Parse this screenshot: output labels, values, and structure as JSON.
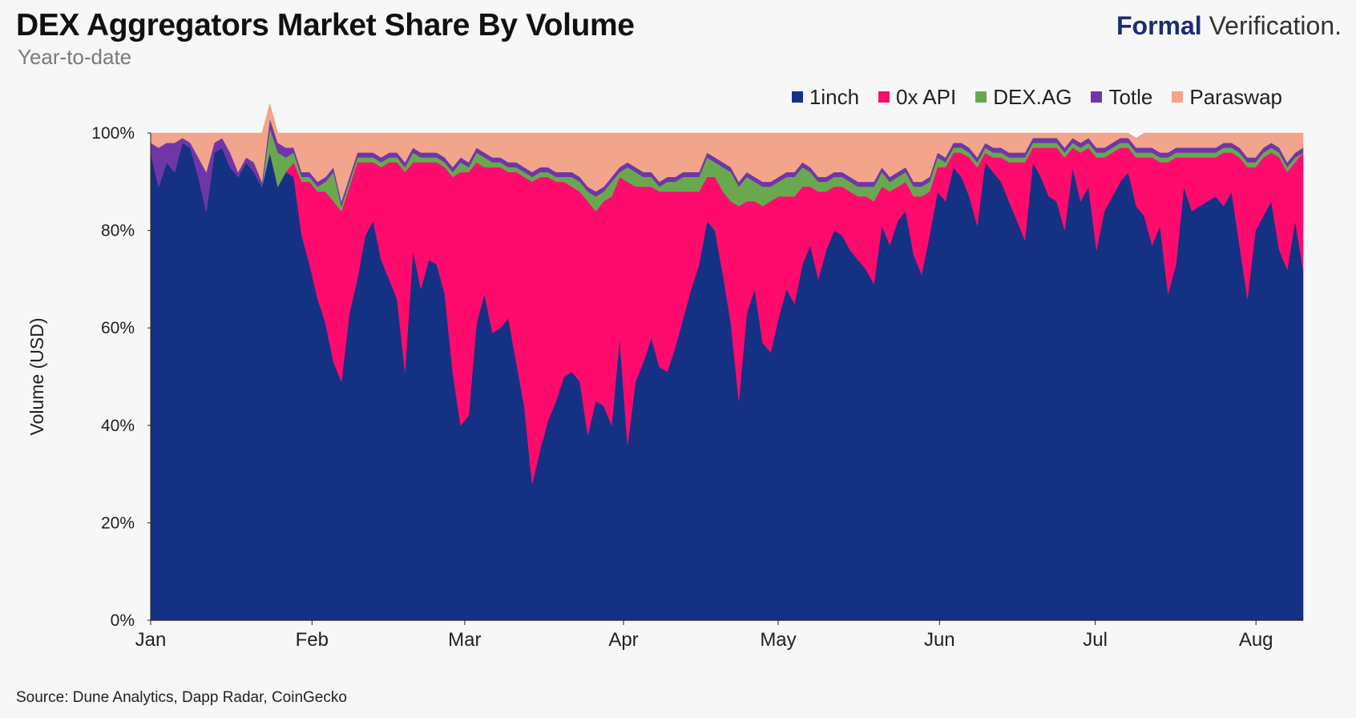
{
  "header": {
    "title": "DEX Aggregators Market Share By Volume",
    "subtitle": "Year-to-date"
  },
  "brand": {
    "strong": "Formal",
    "light": " Verification."
  },
  "source": "Source: Dune Analytics, Dapp Radar, CoinGecko",
  "colors": {
    "1inch": "#143184",
    "0x API": "#ff0b6d",
    "DEX.AG": "#6aa84f",
    "Totle": "#6f36a8",
    "Paraswap": "#f2a58a",
    "background": "#f7f7f7"
  },
  "chart_data": {
    "type": "area",
    "stacked": true,
    "normalized": true,
    "title": "DEX Aggregators Market Share By Volume",
    "subtitle": "Year-to-date",
    "xlabel": "",
    "ylabel": "Volume (USD)",
    "ylim": [
      0,
      100
    ],
    "grid": false,
    "legend_position": "top-right",
    "x_ticks": [
      "Jan",
      "Feb",
      "Mar",
      "Apr",
      "May",
      "Jun",
      "Jul",
      "Aug"
    ],
    "y_ticks": [
      "0%",
      "20%",
      "40%",
      "60%",
      "80%",
      "100%"
    ],
    "series": [
      {
        "name": "1inch",
        "color": "#143184",
        "values": [
          96,
          89,
          94,
          92,
          98,
          97,
          91,
          84,
          96,
          97,
          93,
          91,
          94,
          92,
          89,
          96,
          89,
          92,
          91,
          79,
          73,
          66,
          61,
          53,
          49,
          63,
          70,
          79,
          82,
          74,
          70,
          66,
          51,
          76,
          68,
          74,
          73,
          67,
          51,
          40,
          42,
          61,
          67,
          59,
          60,
          62,
          53,
          44,
          28,
          35,
          41,
          45,
          50,
          51,
          49,
          38,
          45,
          44,
          40,
          58,
          36,
          49,
          53,
          58,
          52,
          51,
          56,
          62,
          68,
          73,
          82,
          80,
          71,
          61,
          45,
          63,
          68,
          57,
          55,
          62,
          68,
          65,
          73,
          77,
          70,
          76,
          80,
          79,
          76,
          74,
          72,
          69,
          81,
          77,
          82,
          84,
          75,
          71,
          79,
          88,
          86,
          93,
          91,
          87,
          81,
          94,
          92,
          90,
          86,
          82,
          78,
          94,
          91,
          87,
          86,
          80,
          93,
          86,
          89,
          76,
          84,
          87,
          90,
          92,
          85,
          83,
          77,
          81,
          67,
          73,
          89,
          84,
          85,
          86,
          87,
          85,
          88,
          77,
          66,
          80,
          83,
          86,
          76,
          72,
          82,
          72
        ]
      },
      {
        "name": "0x API",
        "color": "#ff0b6d",
        "values": [
          0,
          0,
          0,
          0,
          0,
          0,
          0,
          0,
          0,
          0,
          0,
          0,
          0,
          0,
          0,
          0,
          0,
          0,
          3,
          11,
          17,
          22,
          27,
          33,
          35,
          26,
          24,
          15,
          12,
          19,
          24,
          28,
          41,
          18,
          26,
          20,
          21,
          26,
          40,
          52,
          50,
          33,
          26,
          34,
          33,
          30,
          39,
          47,
          62,
          56,
          50,
          45,
          40,
          38,
          39,
          48,
          39,
          42,
          47,
          33,
          54,
          40,
          36,
          31,
          36,
          37,
          32,
          26,
          20,
          15,
          9,
          11,
          17,
          25,
          40,
          23,
          18,
          28,
          31,
          25,
          19,
          22,
          16,
          12,
          18,
          12,
          9,
          10,
          12,
          13,
          15,
          17,
          8,
          11,
          7,
          6,
          12,
          16,
          9,
          5,
          7,
          3,
          5,
          8,
          12,
          2,
          3,
          5,
          8,
          12,
          16,
          3,
          6,
          10,
          11,
          15,
          4,
          10,
          8,
          19,
          11,
          9,
          7,
          5,
          10,
          12,
          18,
          13,
          27,
          22,
          6,
          11,
          10,
          9,
          8,
          11,
          8,
          18,
          27,
          13,
          12,
          10,
          19,
          20,
          12,
          24
        ]
      },
      {
        "name": "DEX.AG",
        "color": "#6aa84f",
        "values": [
          0,
          0,
          0,
          0,
          0,
          0,
          0,
          0,
          0,
          0,
          0,
          0,
          0,
          0,
          0,
          5,
          7,
          3,
          2,
          1,
          1,
          1,
          2,
          6,
          1,
          1,
          1,
          1,
          1,
          1,
          1,
          1,
          1,
          2,
          1,
          1,
          1,
          1,
          1,
          2,
          1,
          2,
          2,
          1,
          1,
          1,
          1,
          1,
          1,
          1,
          1,
          1,
          1,
          2,
          2,
          2,
          3,
          2,
          3,
          1,
          3,
          3,
          2,
          2,
          1,
          2,
          2,
          3,
          3,
          3,
          4,
          3,
          5,
          6,
          4,
          5,
          4,
          4,
          3,
          3,
          4,
          4,
          4,
          3,
          2,
          2,
          2,
          2,
          2,
          2,
          2,
          3,
          3,
          2,
          2,
          2,
          2,
          2,
          2,
          2,
          1,
          1,
          1,
          1,
          1,
          1,
          1,
          1,
          1,
          1,
          1,
          1,
          1,
          1,
          1,
          1,
          1,
          1,
          1,
          1,
          1,
          1,
          1,
          1,
          1,
          1,
          1,
          1,
          1,
          1,
          1,
          1,
          1,
          1,
          1,
          1,
          1,
          1,
          1,
          1,
          1,
          1,
          1,
          1,
          1,
          0
        ]
      },
      {
        "name": "Totle",
        "color": "#6f36a8",
        "values": [
          2,
          8,
          4,
          6,
          1,
          1,
          4,
          8,
          2,
          2,
          3,
          1,
          1,
          2,
          1,
          2,
          2,
          2,
          1,
          1,
          1,
          1,
          1,
          1,
          1,
          1,
          1,
          1,
          1,
          1,
          1,
          1,
          1,
          1,
          1,
          1,
          1,
          1,
          1,
          1,
          1,
          1,
          1,
          1,
          1,
          1,
          1,
          1,
          1,
          1,
          1,
          1,
          1,
          1,
          1,
          1,
          1,
          1,
          1,
          1,
          1,
          1,
          1,
          1,
          1,
          1,
          1,
          1,
          1,
          1,
          1,
          1,
          1,
          1,
          1,
          1,
          1,
          1,
          1,
          1,
          1,
          1,
          1,
          1,
          1,
          1,
          1,
          1,
          1,
          1,
          1,
          1,
          1,
          1,
          1,
          1,
          1,
          1,
          1,
          1,
          1,
          1,
          1,
          1,
          1,
          1,
          1,
          1,
          1,
          1,
          1,
          1,
          1,
          1,
          1,
          1,
          1,
          1,
          1,
          1,
          1,
          1,
          1,
          1,
          1,
          1,
          1,
          1,
          1,
          1,
          1,
          1,
          1,
          1,
          1,
          1,
          1,
          1,
          1,
          1,
          1,
          1,
          1,
          1,
          1,
          1
        ]
      },
      {
        "name": "Paraswap",
        "color": "#f2a58a",
        "values": [
          2,
          3,
          2,
          2,
          1,
          2,
          5,
          8,
          2,
          1,
          4,
          8,
          5,
          6,
          10,
          3,
          2,
          3,
          3,
          8,
          8,
          10,
          9,
          7,
          14,
          9,
          4,
          4,
          4,
          5,
          4,
          4,
          6,
          3,
          4,
          4,
          4,
          5,
          7,
          5,
          6,
          3,
          4,
          5,
          5,
          6,
          6,
          7,
          8,
          7,
          7,
          8,
          8,
          8,
          9,
          11,
          12,
          11,
          9,
          7,
          6,
          7,
          8,
          8,
          10,
          9,
          9,
          8,
          8,
          8,
          4,
          5,
          6,
          7,
          10,
          8,
          9,
          10,
          10,
          9,
          8,
          8,
          6,
          7,
          9,
          9,
          8,
          8,
          9,
          10,
          10,
          10,
          7,
          9,
          8,
          7,
          10,
          10,
          9,
          4,
          5,
          2,
          2,
          3,
          5,
          2,
          3,
          3,
          4,
          4,
          4,
          1,
          1,
          1,
          1,
          3,
          1,
          2,
          1,
          3,
          3,
          2,
          1,
          1,
          2,
          3,
          3,
          4,
          4,
          3,
          3,
          3,
          3,
          3,
          3,
          2,
          2,
          3,
          5,
          5,
          3,
          2,
          3,
          6,
          4,
          3
        ]
      }
    ]
  }
}
